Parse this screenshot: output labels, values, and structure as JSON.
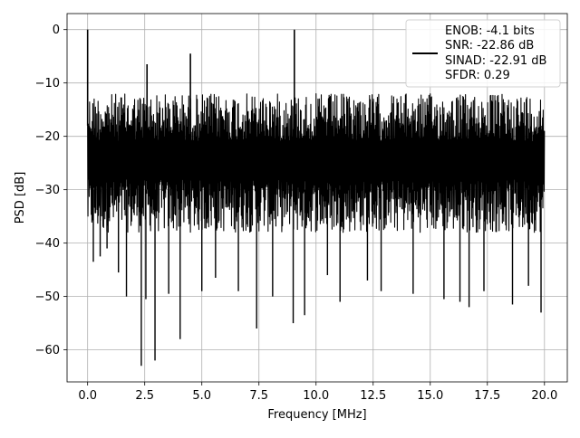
{
  "chart_data": {
    "type": "line",
    "title": "",
    "xlabel": "Frequency [MHz]",
    "ylabel": "PSD [dB]",
    "xlim": [
      -0.9,
      21.0
    ],
    "ylim": [
      -66.0,
      3.0
    ],
    "xticks": [
      0.0,
      2.5,
      5.0,
      7.5,
      10.0,
      12.5,
      15.0,
      17.5,
      20.0
    ],
    "xtick_labels": [
      "0.0",
      "2.5",
      "5.0",
      "7.5",
      "10.0",
      "12.5",
      "15.0",
      "17.5",
      "20.0"
    ],
    "yticks": [
      0,
      -10,
      -20,
      -30,
      -40,
      -50,
      -60
    ],
    "ytick_labels": [
      "0",
      "−10",
      "−20",
      "−30",
      "−40",
      "−50",
      "−60"
    ],
    "grid": true,
    "legend_position": "top-right",
    "series_color": "#000000",
    "legend": {
      "lines": [
        "ENOB: -4.1 bits",
        "SNR: -22.86 dB",
        "SINAD: -22.91 dB",
        "SFDR: 0.29"
      ]
    },
    "series": [
      {
        "x": [
          0.0,
          20.0
        ],
        "noise_floor_range": [
          -35,
          -12
        ],
        "peaks": [
          {
            "x": 0.0,
            "y": 0.0
          },
          {
            "x": 2.6,
            "y": -6.5
          },
          {
            "x": 4.5,
            "y": -4.5
          },
          {
            "x": 9.05,
            "y": 0.0
          }
        ],
        "notches": [
          {
            "x": 0.25,
            "y": -43.5
          },
          {
            "x": 0.55,
            "y": -42.5
          },
          {
            "x": 0.85,
            "y": -41.0
          },
          {
            "x": 1.35,
            "y": -45.5
          },
          {
            "x": 1.7,
            "y": -50.0
          },
          {
            "x": 2.35,
            "y": -63.0
          },
          {
            "x": 2.95,
            "y": -62.0
          },
          {
            "x": 2.55,
            "y": -50.5
          },
          {
            "x": 3.55,
            "y": -49.5
          },
          {
            "x": 4.05,
            "y": -58.0
          },
          {
            "x": 5.0,
            "y": -49.0
          },
          {
            "x": 5.6,
            "y": -46.5
          },
          {
            "x": 6.6,
            "y": -49.0
          },
          {
            "x": 7.4,
            "y": -56.0
          },
          {
            "x": 8.1,
            "y": -50.0
          },
          {
            "x": 9.0,
            "y": -55.0
          },
          {
            "x": 9.5,
            "y": -53.5
          },
          {
            "x": 10.5,
            "y": -46.0
          },
          {
            "x": 11.05,
            "y": -51.0
          },
          {
            "x": 12.25,
            "y": -47.0
          },
          {
            "x": 12.85,
            "y": -49.0
          },
          {
            "x": 14.25,
            "y": -49.5
          },
          {
            "x": 15.6,
            "y": -50.5
          },
          {
            "x": 16.3,
            "y": -51.0
          },
          {
            "x": 16.7,
            "y": -52.0
          },
          {
            "x": 17.35,
            "y": -49.0
          },
          {
            "x": 18.6,
            "y": -51.5
          },
          {
            "x": 19.3,
            "y": -48.0
          },
          {
            "x": 19.85,
            "y": -53.0
          }
        ]
      }
    ]
  }
}
